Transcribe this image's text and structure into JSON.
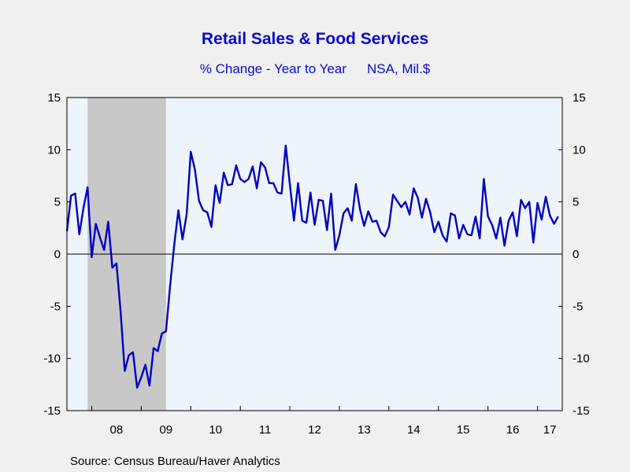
{
  "chart_data": {
    "type": "line",
    "title": "Retail Sales & Food Services",
    "subtitle": "% Change - Year to Year",
    "units": "NSA, Mil.$",
    "xlabel": "",
    "ylabel": "",
    "ylim": [
      -15,
      15
    ],
    "y_ticks": [
      15,
      10,
      5,
      0,
      -5,
      -10,
      -15
    ],
    "x_tick_labels": [
      "08",
      "09",
      "10",
      "11",
      "12",
      "13",
      "14",
      "15",
      "16",
      "17"
    ],
    "grid": false,
    "zero_line": true,
    "recession_shading": {
      "start": "2007-12",
      "end": "2009-06",
      "color": "#c8c8c8"
    },
    "plot_background": "#eef4fc",
    "line_color": "#0000c0",
    "series": [
      {
        "x_start": "2007-07",
        "values": [
          2.2,
          5.6,
          5.8,
          1.9,
          4.4,
          6.4,
          -0.3,
          2.9,
          1.6,
          0.4,
          3.1,
          -1.3,
          -0.9,
          -5.5,
          -11.2,
          -9.7,
          -9.4,
          -12.8,
          -11.8,
          -10.6,
          -12.6,
          -9.0,
          -9.3,
          -7.6,
          -7.4,
          -3.0,
          0.9,
          4.2,
          1.4,
          3.8,
          9.8,
          8.1,
          5.1,
          4.2,
          4.0,
          2.6,
          6.6,
          4.9,
          7.8,
          6.6,
          6.7,
          8.5,
          7.2,
          6.9,
          7.2,
          8.4,
          6.3,
          8.8,
          8.3,
          6.8,
          6.8,
          5.9,
          5.8,
          10.4,
          6.7,
          3.2,
          6.8,
          3.2,
          3.0,
          5.9,
          2.8,
          5.2,
          5.1,
          2.3,
          5.8,
          0.4,
          1.8,
          3.9,
          4.4,
          3.2,
          6.7,
          4.3,
          2.7,
          4.1,
          3.1,
          3.2,
          2.1,
          1.7,
          2.6,
          5.7,
          5.1,
          4.5,
          5.0,
          3.8,
          6.3,
          5.4,
          3.5,
          5.3,
          4.0,
          2.1,
          3.1,
          1.8,
          1.2,
          3.9,
          3.7,
          1.5,
          2.8,
          1.9,
          1.8,
          3.6,
          1.5,
          7.2,
          3.6,
          2.8,
          1.5,
          3.5,
          0.8,
          3.2,
          4.0,
          1.7,
          5.2,
          4.4,
          5.0,
          1.1,
          4.9,
          3.3,
          5.5,
          3.7,
          2.9,
          3.6
        ]
      }
    ]
  },
  "source": "Source:  Census Bureau/Haver Analytics"
}
